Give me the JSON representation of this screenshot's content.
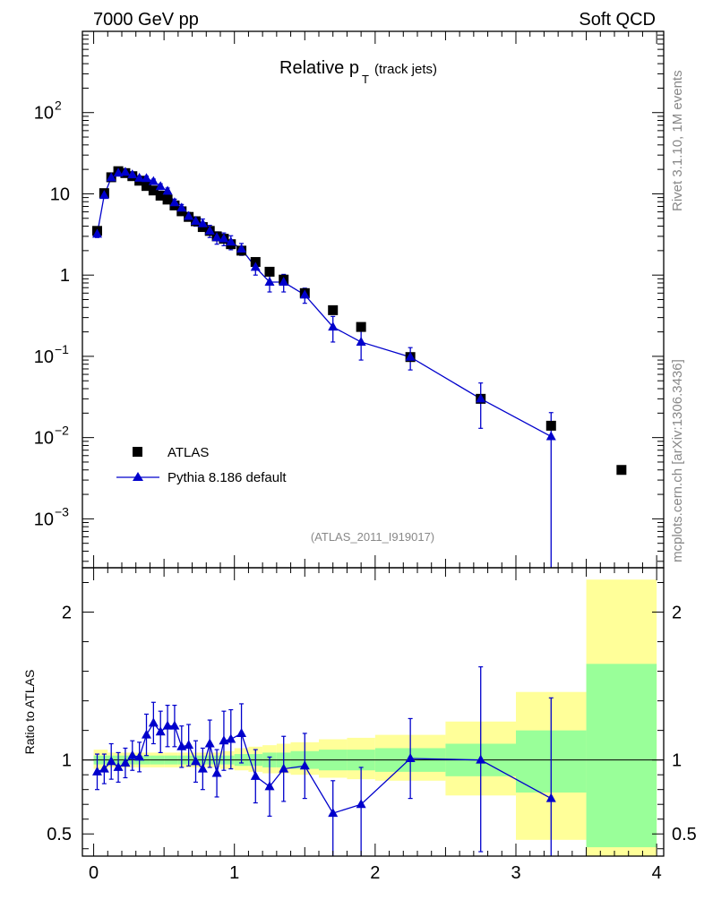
{
  "header": {
    "left": "7000 GeV pp",
    "right": "Soft QCD"
  },
  "side": {
    "rivet": "Rivet 3.1.10,  1M events",
    "mcplots": "mcplots.cern.ch [arXiv:1306.3436]"
  },
  "chart_data": [
    {
      "type": "scatter",
      "panel": "main",
      "title_main": "Relative p",
      "title_sub": "T",
      "title_extra": "(track jets)",
      "analysis_label": "(ATLAS_2011_I919017)",
      "yscale": "log",
      "ylim": [
        0.00025,
        1000
      ],
      "xlim": [
        -0.08,
        4.05
      ],
      "y_tick_labels": [
        {
          "value": 100,
          "base": "10",
          "exp": "2"
        },
        {
          "value": 10,
          "base": "10",
          "exp": ""
        },
        {
          "value": 1,
          "base": "1",
          "exp": ""
        },
        {
          "value": 0.1,
          "base": "10",
          "exp": "−1"
        },
        {
          "value": 0.01,
          "base": "10",
          "exp": "−2"
        },
        {
          "value": 0.001,
          "base": "10",
          "exp": "−3"
        }
      ],
      "legend": [
        {
          "name": "ATLAS",
          "marker": "square",
          "color": "#000000"
        },
        {
          "name": "Pythia 8.186 default",
          "marker": "triangle",
          "color": "#0000cc"
        }
      ],
      "series": [
        {
          "name": "ATLAS",
          "color": "#000000",
          "x": [
            0.025,
            0.075,
            0.125,
            0.175,
            0.225,
            0.275,
            0.325,
            0.375,
            0.425,
            0.475,
            0.525,
            0.575,
            0.625,
            0.675,
            0.725,
            0.775,
            0.825,
            0.875,
            0.925,
            0.975,
            1.05,
            1.15,
            1.25,
            1.35,
            1.5,
            1.7,
            1.9,
            2.25,
            2.75,
            3.25,
            3.75
          ],
          "y": [
            3.5,
            10.2,
            16,
            19,
            18,
            16.5,
            14.5,
            12.5,
            11,
            9.5,
            8.5,
            7.2,
            6.1,
            5.2,
            4.6,
            3.9,
            3.5,
            3.0,
            2.8,
            2.4,
            2.0,
            1.45,
            1.1,
            0.88,
            0.6,
            0.37,
            0.23,
            0.098,
            0.03,
            0.014,
            0.004
          ]
        },
        {
          "name": "Pythia 8.186 default",
          "color": "#0000cc",
          "x": [
            0.025,
            0.075,
            0.125,
            0.175,
            0.225,
            0.275,
            0.325,
            0.375,
            0.425,
            0.475,
            0.525,
            0.575,
            0.625,
            0.675,
            0.725,
            0.775,
            0.825,
            0.875,
            0.925,
            0.975,
            1.05,
            1.15,
            1.25,
            1.35,
            1.5,
            1.7,
            1.9,
            2.25,
            2.75,
            3.25
          ],
          "y": [
            3.2,
            9.6,
            15.8,
            18.0,
            18.5,
            17.2,
            15.6,
            15.5,
            14.2,
            12.3,
            10.8,
            7.8,
            6.7,
            5.3,
            4.6,
            4.3,
            3.5,
            2.9,
            2.8,
            2.55,
            2.1,
            1.25,
            0.82,
            0.82,
            0.57,
            0.23,
            0.15,
            0.098,
            0.03,
            0.0103
          ],
          "err_lo": [
            0.3,
            0.8,
            1.0,
            1.0,
            1.0,
            1.0,
            1.0,
            1.0,
            1.0,
            1.0,
            1.0,
            0.8,
            0.7,
            0.6,
            0.6,
            0.6,
            0.6,
            0.5,
            0.5,
            0.5,
            0.35,
            0.25,
            0.2,
            0.2,
            0.12,
            0.08,
            0.06,
            0.03,
            0.017,
            0.0102
          ],
          "err_hi": [
            0.3,
            0.8,
            1.0,
            1.0,
            1.0,
            1.0,
            1.0,
            1.0,
            1.0,
            1.0,
            1.0,
            0.8,
            0.7,
            0.6,
            0.6,
            0.6,
            0.6,
            0.5,
            0.5,
            0.5,
            0.35,
            0.25,
            0.2,
            0.2,
            0.12,
            0.08,
            0.06,
            0.03,
            0.017,
            0.01
          ]
        }
      ]
    },
    {
      "type": "line",
      "panel": "ratio",
      "ylabel": "Ratio to ATLAS",
      "ylim": [
        0.35,
        2.3
      ],
      "xlim": [
        -0.08,
        4.05
      ],
      "x_tick_labels": [
        "0",
        "1",
        "2",
        "3",
        "4"
      ],
      "x_tick_values": [
        0,
        1,
        2,
        3,
        4
      ],
      "y_tick_labels": [
        "0.5",
        "1",
        "2"
      ],
      "y_tick_values": [
        0.5,
        1,
        2
      ],
      "reference_line": 1,
      "uncertainty_bands": {
        "bin_edges": [
          0,
          0.1,
          0.2,
          0.3,
          0.4,
          0.5,
          0.6,
          0.7,
          0.8,
          0.9,
          1.0,
          1.1,
          1.2,
          1.3,
          1.4,
          1.6,
          1.8,
          2.0,
          2.5,
          3.0,
          3.5,
          4.0
        ],
        "green_lo": [
          0.97,
          0.97,
          0.97,
          0.97,
          0.97,
          0.97,
          0.97,
          0.97,
          0.97,
          0.97,
          0.96,
          0.96,
          0.95,
          0.95,
          0.94,
          0.93,
          0.93,
          0.92,
          0.89,
          0.78,
          0.41
        ],
        "green_hi": [
          1.03,
          1.03,
          1.03,
          1.03,
          1.03,
          1.03,
          1.03,
          1.03,
          1.03,
          1.03,
          1.04,
          1.04,
          1.05,
          1.05,
          1.06,
          1.07,
          1.07,
          1.08,
          1.11,
          1.2,
          1.65
        ],
        "yellow_lo": [
          0.94,
          0.95,
          0.95,
          0.95,
          0.95,
          0.95,
          0.95,
          0.95,
          0.95,
          0.94,
          0.93,
          0.92,
          0.91,
          0.91,
          0.9,
          0.88,
          0.87,
          0.86,
          0.76,
          0.46,
          0.35
        ],
        "yellow_hi": [
          1.07,
          1.05,
          1.05,
          1.05,
          1.05,
          1.05,
          1.05,
          1.05,
          1.05,
          1.06,
          1.08,
          1.09,
          1.1,
          1.11,
          1.12,
          1.14,
          1.15,
          1.17,
          1.26,
          1.46,
          2.22
        ]
      },
      "series": [
        {
          "name": "Pythia 8.186 default",
          "color": "#0000cc",
          "x": [
            0.025,
            0.075,
            0.125,
            0.175,
            0.225,
            0.275,
            0.325,
            0.375,
            0.425,
            0.475,
            0.525,
            0.575,
            0.625,
            0.675,
            0.725,
            0.775,
            0.825,
            0.875,
            0.925,
            0.975,
            1.05,
            1.15,
            1.25,
            1.35,
            1.5,
            1.7,
            1.9,
            2.25,
            2.75,
            3.25
          ],
          "y": [
            0.92,
            0.94,
            0.99,
            0.95,
            0.98,
            1.03,
            1.02,
            1.17,
            1.25,
            1.19,
            1.23,
            1.23,
            1.09,
            1.1,
            0.99,
            0.94,
            1.11,
            0.91,
            1.13,
            1.14,
            1.18,
            0.89,
            0.82,
            0.94,
            0.96,
            0.64,
            0.7,
            1.01,
            1.0,
            0.74
          ],
          "err_lo": [
            0.12,
            0.1,
            0.12,
            0.1,
            0.1,
            0.1,
            0.1,
            0.14,
            0.14,
            0.14,
            0.14,
            0.14,
            0.14,
            0.14,
            0.14,
            0.14,
            0.16,
            0.16,
            0.2,
            0.2,
            0.2,
            0.18,
            0.2,
            0.22,
            0.22,
            0.3,
            0.35,
            0.27,
            0.62,
            0.4
          ],
          "err_hi": [
            0.12,
            0.1,
            0.12,
            0.1,
            0.1,
            0.1,
            0.1,
            0.14,
            0.14,
            0.14,
            0.14,
            0.14,
            0.14,
            0.14,
            0.14,
            0.14,
            0.16,
            0.16,
            0.2,
            0.2,
            0.2,
            0.18,
            0.2,
            0.22,
            0.22,
            0.22,
            0.25,
            0.27,
            0.63,
            0.68
          ]
        }
      ]
    }
  ]
}
